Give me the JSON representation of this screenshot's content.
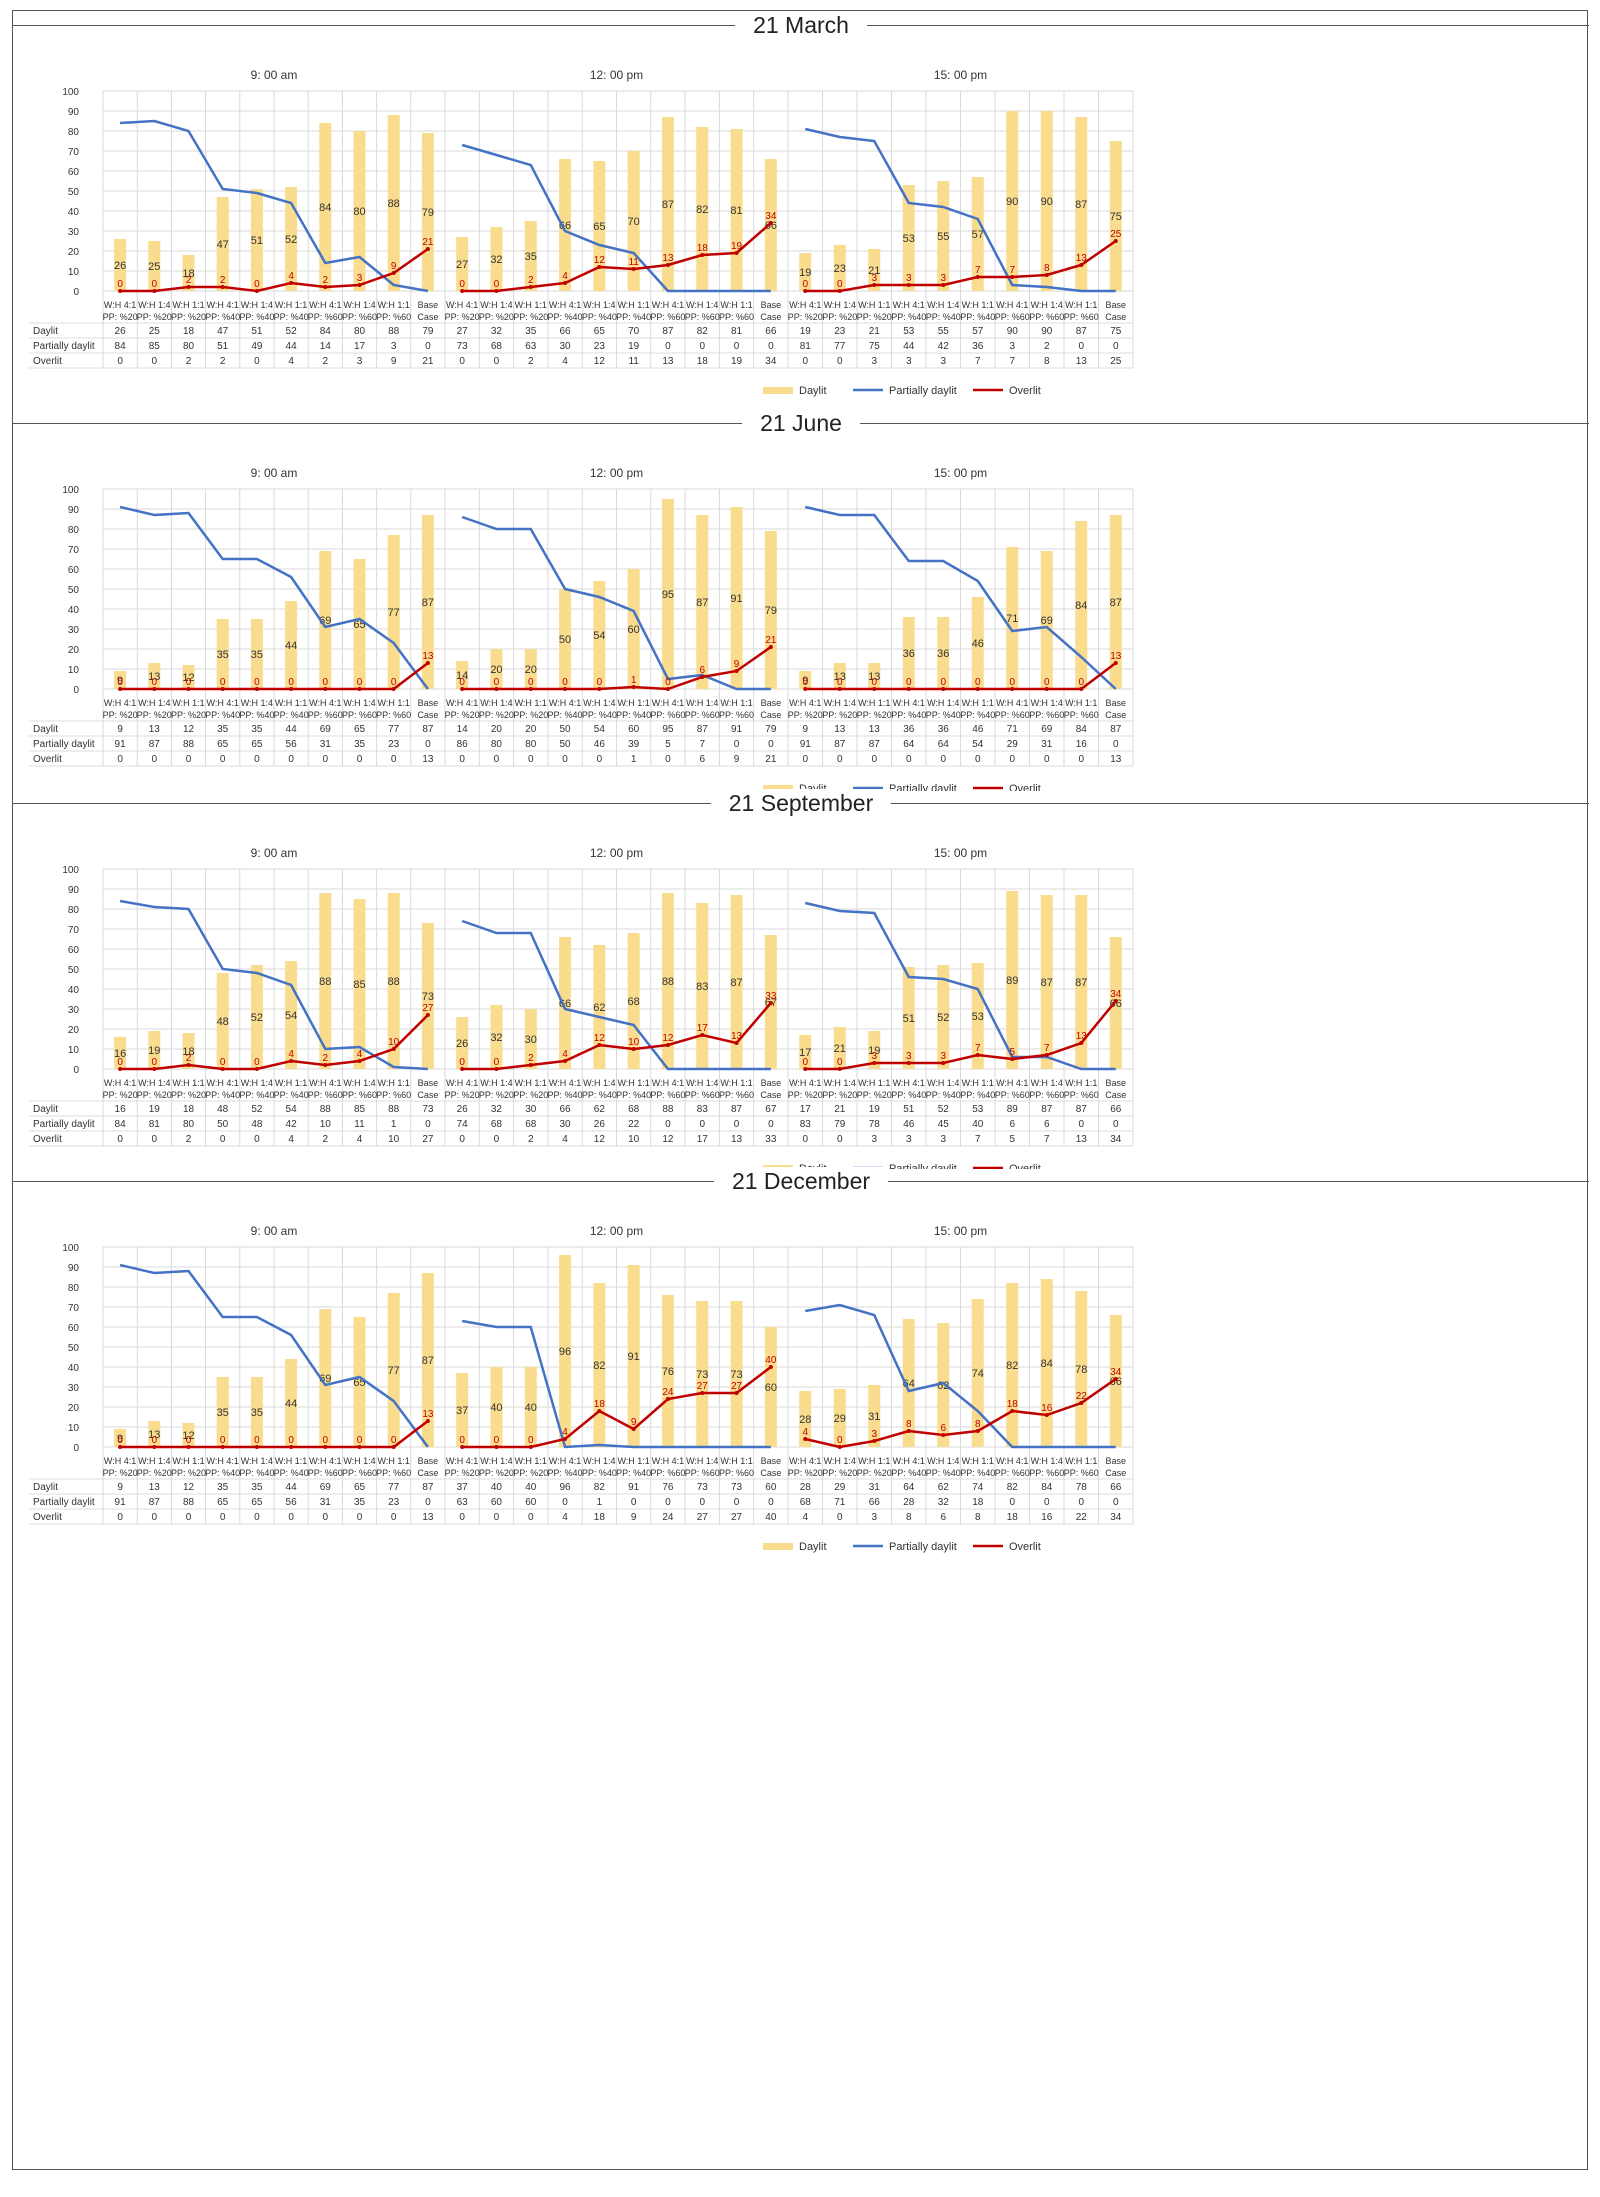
{
  "colors": {
    "daylit": "#f9dc8e",
    "partial": "#4472c4",
    "overlit": "#c00000",
    "grid": "#d9d9d9"
  },
  "legend": {
    "daylit": "Daylit",
    "partial": "Partially daylit",
    "overlit": "Overlit"
  },
  "table_row_labels": [
    "Daylit",
    "Partially daylit",
    "Overlit"
  ],
  "sections": [
    {
      "title": "21 March"
    },
    {
      "title": "21 June"
    },
    {
      "title": "21 September"
    },
    {
      "title": "21 December"
    }
  ],
  "chart_data": {
    "type": "bar",
    "categories": [
      [
        "W:H 4:1",
        "PP: %20"
      ],
      [
        "W:H 1:4",
        "PP: %20"
      ],
      [
        "W:H 1:1",
        "PP: %20"
      ],
      [
        "W:H 4:1",
        "PP: %40"
      ],
      [
        "W:H 1:4",
        "PP: %40"
      ],
      [
        "W:H 1:1",
        "PP: %40"
      ],
      [
        "W:H 4:1",
        "PP: %60"
      ],
      [
        "W:H 1:4",
        "PP: %60"
      ],
      [
        "W:H 1:1",
        "PP: %60"
      ],
      [
        "Base",
        "Case"
      ]
    ],
    "ylim": [
      0,
      100
    ],
    "yticks": [
      0,
      10,
      20,
      30,
      40,
      50,
      60,
      70,
      80,
      90,
      100
    ],
    "panels": [
      {
        "date": "21 March",
        "time": "9: 00 am",
        "daylit": [
          26,
          25,
          18,
          47,
          51,
          52,
          84,
          80,
          88,
          79
        ],
        "partial": [
          84,
          85,
          80,
          51,
          49,
          44,
          14,
          17,
          3,
          0
        ],
        "overlit": [
          0,
          0,
          2,
          2,
          0,
          4,
          2,
          3,
          9,
          21
        ]
      },
      {
        "date": "21 March",
        "time": "12: 00 pm",
        "daylit": [
          27,
          32,
          35,
          66,
          65,
          70,
          87,
          82,
          81,
          66
        ],
        "partial": [
          73,
          68,
          63,
          30,
          23,
          19,
          0,
          0,
          0,
          0
        ],
        "overlit": [
          0,
          0,
          2,
          4,
          12,
          11,
          13,
          18,
          19,
          34
        ]
      },
      {
        "date": "21 March",
        "time": "15: 00 pm",
        "daylit": [
          19,
          23,
          21,
          53,
          55,
          57,
          90,
          90,
          87,
          75
        ],
        "partial": [
          81,
          77,
          75,
          44,
          42,
          36,
          3,
          2,
          0,
          0
        ],
        "overlit": [
          0,
          0,
          3,
          3,
          3,
          7,
          7,
          8,
          13,
          25
        ]
      },
      {
        "date": "21 June",
        "time": "9: 00 am",
        "daylit": [
          9,
          13,
          12,
          35,
          35,
          44,
          69,
          65,
          77,
          87
        ],
        "partial": [
          91,
          87,
          88,
          65,
          65,
          56,
          31,
          35,
          23,
          0
        ],
        "overlit": [
          0,
          0,
          0,
          0,
          0,
          0,
          0,
          0,
          0,
          13
        ]
      },
      {
        "date": "21 June",
        "time": "12: 00 pm",
        "daylit": [
          14,
          20,
          20,
          50,
          54,
          60,
          95,
          87,
          91,
          79
        ],
        "partial": [
          86,
          80,
          80,
          50,
          46,
          39,
          5,
          7,
          0,
          0
        ],
        "overlit": [
          0,
          0,
          0,
          0,
          0,
          1,
          0,
          6,
          9,
          21
        ]
      },
      {
        "date": "21 June",
        "time": "15: 00 pm",
        "daylit": [
          9,
          13,
          13,
          36,
          36,
          46,
          71,
          69,
          84,
          87
        ],
        "partial": [
          91,
          87,
          87,
          64,
          64,
          54,
          29,
          31,
          16,
          0
        ],
        "overlit": [
          0,
          0,
          0,
          0,
          0,
          0,
          0,
          0,
          0,
          13
        ]
      },
      {
        "date": "21 September",
        "time": "9: 00 am",
        "daylit": [
          16,
          19,
          18,
          48,
          52,
          54,
          88,
          85,
          88,
          73
        ],
        "partial": [
          84,
          81,
          80,
          50,
          48,
          42,
          10,
          11,
          1,
          0
        ],
        "overlit": [
          0,
          0,
          2,
          0,
          0,
          4,
          2,
          4,
          10,
          27
        ]
      },
      {
        "date": "21 September",
        "time": "12: 00 pm",
        "daylit": [
          26,
          32,
          30,
          66,
          62,
          68,
          88,
          83,
          87,
          67
        ],
        "partial": [
          74,
          68,
          68,
          30,
          26,
          22,
          0,
          0,
          0,
          0
        ],
        "overlit": [
          0,
          0,
          2,
          4,
          12,
          10,
          12,
          17,
          13,
          33
        ]
      },
      {
        "date": "21 September",
        "time": "15: 00 pm",
        "daylit": [
          17,
          21,
          19,
          51,
          52,
          53,
          89,
          87,
          87,
          66
        ],
        "partial": [
          83,
          79,
          78,
          46,
          45,
          40,
          6,
          6,
          0,
          0
        ],
        "overlit": [
          0,
          0,
          3,
          3,
          3,
          7,
          5,
          7,
          13,
          34
        ]
      },
      {
        "date": "21 December",
        "time": "9: 00 am",
        "daylit": [
          9,
          13,
          12,
          35,
          35,
          44,
          69,
          65,
          77,
          87
        ],
        "partial": [
          91,
          87,
          88,
          65,
          65,
          56,
          31,
          35,
          23,
          0
        ],
        "overlit": [
          0,
          0,
          0,
          0,
          0,
          0,
          0,
          0,
          0,
          13
        ]
      },
      {
        "date": "21 December",
        "time": "12: 00 pm",
        "daylit": [
          37,
          40,
          40,
          96,
          82,
          91,
          76,
          73,
          73,
          60
        ],
        "partial": [
          63,
          60,
          60,
          0,
          1,
          0,
          0,
          0,
          0,
          0
        ],
        "overlit": [
          0,
          0,
          0,
          4,
          18,
          9,
          24,
          27,
          27,
          40
        ]
      },
      {
        "date": "21 December",
        "time": "15: 00 pm",
        "daylit": [
          28,
          29,
          31,
          64,
          62,
          74,
          82,
          84,
          78,
          66
        ],
        "partial": [
          68,
          71,
          66,
          28,
          32,
          18,
          0,
          0,
          0,
          0
        ],
        "overlit": [
          4,
          0,
          3,
          8,
          6,
          8,
          18,
          16,
          22,
          34
        ]
      }
    ]
  }
}
